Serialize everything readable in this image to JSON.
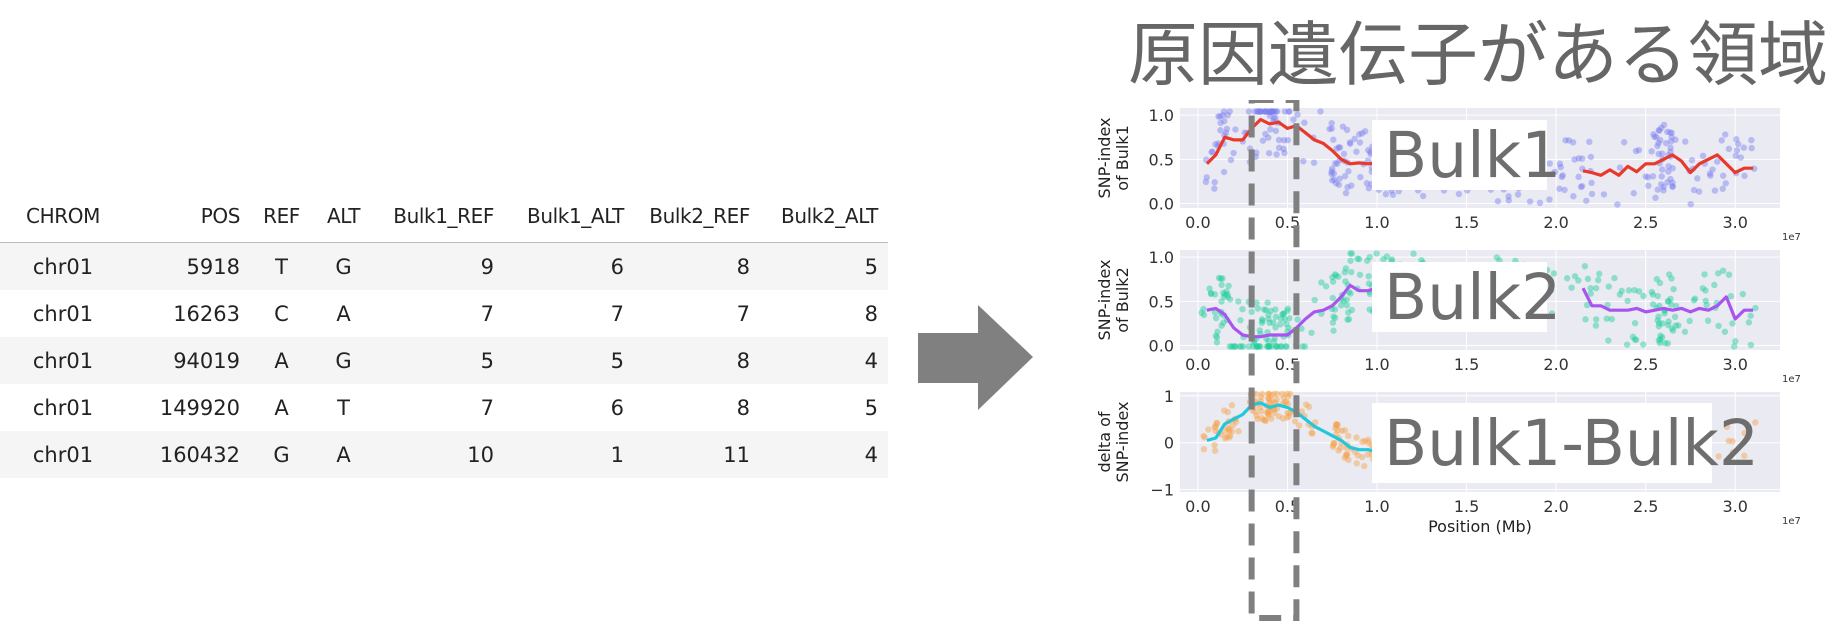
{
  "table": {
    "headers": [
      "CHROM",
      "POS",
      "REF",
      "ALT",
      "Bulk1_REF",
      "Bulk1_ALT",
      "Bulk2_REF",
      "Bulk2_ALT"
    ],
    "rows": [
      [
        "chr01",
        "5918",
        "T",
        "G",
        "9",
        "6",
        "8",
        "5"
      ],
      [
        "chr01",
        "16263",
        "C",
        "A",
        "7",
        "7",
        "7",
        "8"
      ],
      [
        "chr01",
        "94019",
        "A",
        "G",
        "5",
        "5",
        "8",
        "4"
      ],
      [
        "chr01",
        "149920",
        "A",
        "T",
        "7",
        "6",
        "8",
        "5"
      ],
      [
        "chr01",
        "160432",
        "G",
        "A",
        "10",
        "1",
        "11",
        "4"
      ]
    ]
  },
  "arrow": {
    "color": "#808080",
    "icon": "right-arrow-icon"
  },
  "heading": "原因遺伝子がある領域",
  "highlight": {
    "x_range": [
      0.3,
      0.55
    ],
    "color": "#808080"
  },
  "chart_data": [
    {
      "type": "scatter",
      "ylabel": "SNP-index\nof Bulk1",
      "overlay_label": "Bulk1",
      "xlim": [
        -0.1,
        3.25
      ],
      "ylim": [
        -0.05,
        1.08
      ],
      "xticks": [
        "0.0",
        "0.5",
        "1.0",
        "1.5",
        "2.0",
        "2.5",
        "3.0"
      ],
      "yticks": [
        "0.0",
        "0.5",
        "1.0"
      ],
      "x_exponent": "1e7",
      "point_color": "#7b7ff0",
      "line_color": "#e8392d",
      "line_x": [
        0.05,
        0.1,
        0.15,
        0.2,
        0.25,
        0.3,
        0.35,
        0.4,
        0.45,
        0.5,
        0.55,
        0.6,
        0.65,
        0.7,
        0.75,
        0.8,
        0.85,
        0.9,
        0.95,
        1.0,
        1.05,
        1.1,
        1.15,
        2.15,
        2.2,
        2.25,
        2.3,
        2.35,
        2.4,
        2.45,
        2.5,
        2.55,
        2.6,
        2.65,
        2.7,
        2.75,
        2.8,
        2.85,
        2.9,
        2.95,
        3.0,
        3.05,
        3.1
      ],
      "line_y": [
        0.45,
        0.55,
        0.75,
        0.72,
        0.72,
        0.85,
        0.95,
        0.9,
        0.92,
        0.85,
        0.88,
        0.8,
        0.72,
        0.68,
        0.6,
        0.5,
        0.45,
        0.46,
        0.45,
        0.46,
        0.47,
        0.5,
        0.48,
        0.37,
        0.35,
        0.32,
        0.38,
        0.32,
        0.42,
        0.36,
        0.45,
        0.45,
        0.5,
        0.55,
        0.48,
        0.35,
        0.45,
        0.5,
        0.55,
        0.45,
        0.35,
        0.4,
        0.4
      ]
    },
    {
      "type": "scatter",
      "ylabel": "SNP-index\nof Bulk2",
      "overlay_label": "Bulk2",
      "xlim": [
        -0.1,
        3.25
      ],
      "ylim": [
        -0.05,
        1.08
      ],
      "xticks": [
        "0.0",
        "0.5",
        "1.0",
        "1.5",
        "2.0",
        "2.5",
        "3.0"
      ],
      "yticks": [
        "0.0",
        "0.5",
        "1.0"
      ],
      "x_exponent": "1e7",
      "point_color": "#1fcf9a",
      "line_color": "#a855f0",
      "line_x": [
        0.05,
        0.1,
        0.15,
        0.2,
        0.25,
        0.3,
        0.35,
        0.4,
        0.45,
        0.5,
        0.55,
        0.6,
        0.65,
        0.7,
        0.75,
        0.8,
        0.85,
        0.9,
        0.95,
        1.0,
        1.05,
        1.1,
        1.15,
        2.15,
        2.2,
        2.25,
        2.3,
        2.35,
        2.4,
        2.45,
        2.5,
        2.55,
        2.6,
        2.65,
        2.7,
        2.75,
        2.8,
        2.85,
        2.9,
        2.95,
        3.0,
        3.05,
        3.1
      ],
      "line_y": [
        0.4,
        0.42,
        0.35,
        0.2,
        0.12,
        0.1,
        0.1,
        0.12,
        0.12,
        0.12,
        0.2,
        0.3,
        0.38,
        0.4,
        0.45,
        0.55,
        0.68,
        0.62,
        0.62,
        0.65,
        0.62,
        0.66,
        0.65,
        0.65,
        0.45,
        0.45,
        0.4,
        0.4,
        0.4,
        0.42,
        0.38,
        0.4,
        0.42,
        0.4,
        0.42,
        0.38,
        0.42,
        0.4,
        0.45,
        0.55,
        0.3,
        0.4,
        0.4
      ]
    },
    {
      "type": "scatter",
      "ylabel": "delta of\nSNP-index",
      "overlay_label": "Bulk1-Bulk2",
      "xlabel": "Position (Mb)",
      "xlim": [
        -0.1,
        3.25
      ],
      "ylim": [
        -1.05,
        1.08
      ],
      "xticks": [
        "0.0",
        "0.5",
        "1.0",
        "1.5",
        "2.0",
        "2.5",
        "3.0"
      ],
      "yticks": [
        "−1",
        "0",
        "1"
      ],
      "x_exponent": "1e7",
      "point_color": "#f7a14a",
      "line_color": "#22c7dc",
      "line_x": [
        0.05,
        0.1,
        0.15,
        0.2,
        0.25,
        0.3,
        0.35,
        0.4,
        0.45,
        0.5,
        0.55,
        0.6,
        0.65,
        0.7,
        0.75,
        0.8,
        0.85,
        0.9,
        0.95,
        1.0,
        1.05,
        1.1,
        1.15
      ],
      "line_y": [
        0.05,
        0.1,
        0.4,
        0.5,
        0.6,
        0.8,
        0.85,
        0.75,
        0.8,
        0.75,
        0.65,
        0.5,
        0.35,
        0.25,
        0.15,
        0.05,
        -0.1,
        -0.15,
        -0.15,
        -0.2,
        -0.15,
        -0.15,
        -0.2
      ]
    }
  ]
}
